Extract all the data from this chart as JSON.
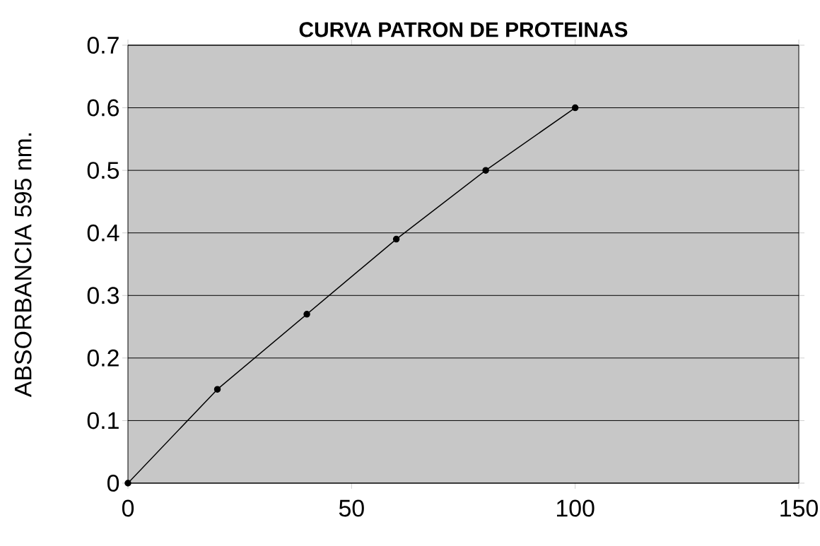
{
  "chart_data": {
    "type": "line",
    "title": "CURVA PATRON DE PROTEINAS",
    "ylabel": "ABSORBANCIA 595 nm.",
    "x": [
      0,
      20,
      40,
      60,
      80,
      100
    ],
    "series": [
      {
        "color": "#000000",
        "values": [
          0,
          0.15,
          0.27,
          0.39,
          0.5,
          0.6
        ]
      }
    ],
    "xlim": [
      0,
      150
    ],
    "xticks": [
      0,
      50,
      100,
      150
    ],
    "ylim": [
      0,
      0.7
    ],
    "yticks": [
      0,
      0.1,
      0.2,
      0.3,
      0.4,
      0.5,
      0.6,
      0.7
    ],
    "grid": "y",
    "marker": "circle",
    "line_style": "solid"
  }
}
